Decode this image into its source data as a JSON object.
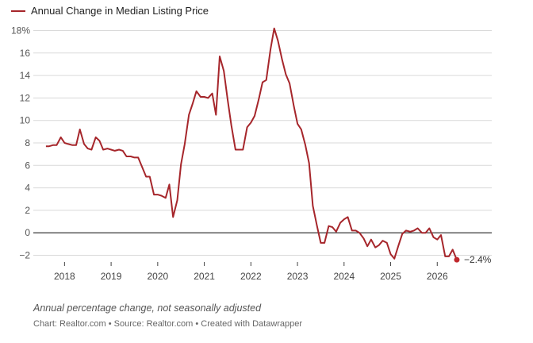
{
  "chart_data": {
    "type": "line",
    "legend": [
      "Annual Change in Median Listing Price"
    ],
    "series": [
      {
        "name": "Annual Change in Median Listing Price",
        "color": "#a6262b",
        "points": [
          [
            2017.6,
            7.7
          ],
          [
            2017.67,
            7.7
          ],
          [
            2017.75,
            7.8
          ],
          [
            2017.83,
            7.8
          ],
          [
            2017.92,
            8.5
          ],
          [
            2018.0,
            8.0
          ],
          [
            2018.08,
            7.9
          ],
          [
            2018.17,
            7.8
          ],
          [
            2018.25,
            7.8
          ],
          [
            2018.33,
            9.2
          ],
          [
            2018.42,
            7.9
          ],
          [
            2018.5,
            7.5
          ],
          [
            2018.58,
            7.4
          ],
          [
            2018.67,
            8.5
          ],
          [
            2018.75,
            8.2
          ],
          [
            2018.83,
            7.4
          ],
          [
            2018.92,
            7.5
          ],
          [
            2019.0,
            7.4
          ],
          [
            2019.08,
            7.3
          ],
          [
            2019.17,
            7.4
          ],
          [
            2019.25,
            7.3
          ],
          [
            2019.33,
            6.8
          ],
          [
            2019.42,
            6.8
          ],
          [
            2019.5,
            6.7
          ],
          [
            2019.58,
            6.7
          ],
          [
            2019.67,
            5.8
          ],
          [
            2019.75,
            5.0
          ],
          [
            2019.83,
            5.0
          ],
          [
            2019.92,
            3.4
          ],
          [
            2020.0,
            3.4
          ],
          [
            2020.08,
            3.3
          ],
          [
            2020.17,
            3.1
          ],
          [
            2020.25,
            4.3
          ],
          [
            2020.33,
            1.4
          ],
          [
            2020.42,
            2.9
          ],
          [
            2020.5,
            6.1
          ],
          [
            2020.58,
            7.9
          ],
          [
            2020.67,
            10.5
          ],
          [
            2020.75,
            11.5
          ],
          [
            2020.83,
            12.6
          ],
          [
            2020.92,
            12.1
          ],
          [
            2021.0,
            12.1
          ],
          [
            2021.08,
            12.0
          ],
          [
            2021.17,
            12.4
          ],
          [
            2021.25,
            10.5
          ],
          [
            2021.33,
            15.7
          ],
          [
            2021.42,
            14.4
          ],
          [
            2021.5,
            11.9
          ],
          [
            2021.58,
            9.6
          ],
          [
            2021.67,
            7.4
          ],
          [
            2021.75,
            7.4
          ],
          [
            2021.83,
            7.4
          ],
          [
            2021.92,
            9.4
          ],
          [
            2022.0,
            9.8
          ],
          [
            2022.08,
            10.4
          ],
          [
            2022.17,
            11.9
          ],
          [
            2022.25,
            13.4
          ],
          [
            2022.33,
            13.6
          ],
          [
            2022.42,
            16.3
          ],
          [
            2022.5,
            18.2
          ],
          [
            2022.58,
            17.1
          ],
          [
            2022.67,
            15.4
          ],
          [
            2022.75,
            14.1
          ],
          [
            2022.83,
            13.3
          ],
          [
            2022.92,
            11.3
          ],
          [
            2023.0,
            9.7
          ],
          [
            2023.08,
            9.2
          ],
          [
            2023.17,
            7.8
          ],
          [
            2023.25,
            6.2
          ],
          [
            2023.33,
            2.4
          ],
          [
            2023.42,
            0.6
          ],
          [
            2023.5,
            -0.9
          ],
          [
            2023.58,
            -0.9
          ],
          [
            2023.67,
            0.6
          ],
          [
            2023.75,
            0.5
          ],
          [
            2023.83,
            0.1
          ],
          [
            2023.92,
            0.9
          ],
          [
            2024.0,
            1.2
          ],
          [
            2024.08,
            1.4
          ],
          [
            2024.17,
            0.2
          ],
          [
            2024.25,
            0.2
          ],
          [
            2024.33,
            0.0
          ],
          [
            2024.42,
            -0.5
          ],
          [
            2024.5,
            -1.2
          ],
          [
            2024.58,
            -0.6
          ],
          [
            2024.67,
            -1.3
          ],
          [
            2024.75,
            -1.1
          ],
          [
            2024.83,
            -0.7
          ],
          [
            2024.92,
            -0.9
          ],
          [
            2025.0,
            -1.9
          ],
          [
            2025.08,
            -2.3
          ],
          [
            2025.17,
            -1.1
          ],
          [
            2025.25,
            -0.1
          ],
          [
            2025.33,
            0.2
          ],
          [
            2025.42,
            0.1
          ],
          [
            2025.5,
            0.2
          ],
          [
            2025.58,
            0.4
          ],
          [
            2025.67,
            0.0
          ],
          [
            2025.75,
            0.0
          ],
          [
            2025.83,
            0.4
          ],
          [
            2025.92,
            -0.4
          ],
          [
            2026.0,
            -0.6
          ],
          [
            2026.08,
            -0.2
          ],
          [
            2026.17,
            -2.1
          ],
          [
            2026.25,
            -2.1
          ],
          [
            2026.33,
            -1.5
          ],
          [
            2026.42,
            -2.4
          ]
        ]
      }
    ],
    "end_label": "−2.4%",
    "x_ticks": [
      2018,
      2019,
      2020,
      2021,
      2022,
      2023,
      2024,
      2025,
      2026
    ],
    "xlim": [
      2017.33,
      2027.17
    ],
    "y_ticks": [
      -2,
      0,
      2,
      4,
      6,
      8,
      10,
      12,
      14,
      16,
      18
    ],
    "y_tick_labels": [
      "−2",
      "0",
      "2",
      "4",
      "6",
      "8",
      "10",
      "12",
      "14",
      "16",
      "18%"
    ],
    "ylim": [
      -2.6,
      18.6
    ],
    "grid": true
  },
  "footer": {
    "note": "Annual percentage change, not seasonally adjusted",
    "credit": "Chart: Realtor.com • Source: Realtor.com • Created with Datawrapper"
  }
}
